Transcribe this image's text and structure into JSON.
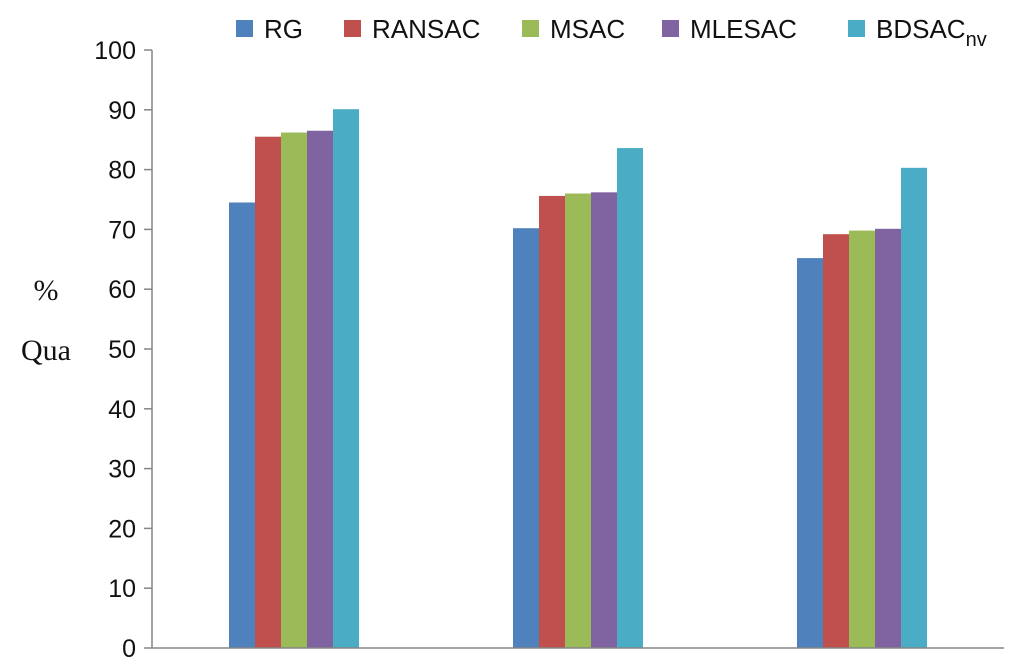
{
  "chart_data": {
    "type": "bar",
    "title": "",
    "xlabel": "",
    "ylabel_lines": [
      "%",
      "Qua"
    ],
    "ylim": [
      0,
      100
    ],
    "yticks": [
      0,
      10,
      20,
      30,
      40,
      50,
      60,
      70,
      80,
      90,
      100
    ],
    "categories": [
      "",
      "",
      ""
    ],
    "legend_position": "top",
    "grid": false,
    "series": [
      {
        "name": "RG",
        "name_sub": "",
        "color": "#4f81bd",
        "values": [
          74.5,
          70.2,
          65.2
        ]
      },
      {
        "name": "RANSAC",
        "name_sub": "",
        "color": "#c0504d",
        "values": [
          85.5,
          75.6,
          69.2
        ]
      },
      {
        "name": "MSAC",
        "name_sub": "",
        "color": "#9bbb59",
        "values": [
          86.2,
          76.0,
          69.8
        ]
      },
      {
        "name": "MLESAC",
        "name_sub": "",
        "color": "#8064a2",
        "values": [
          86.5,
          76.2,
          70.1
        ]
      },
      {
        "name": "BDSAC",
        "name_sub": "nv",
        "color": "#4bacc6",
        "values": [
          90.1,
          83.6,
          80.3
        ]
      }
    ]
  }
}
